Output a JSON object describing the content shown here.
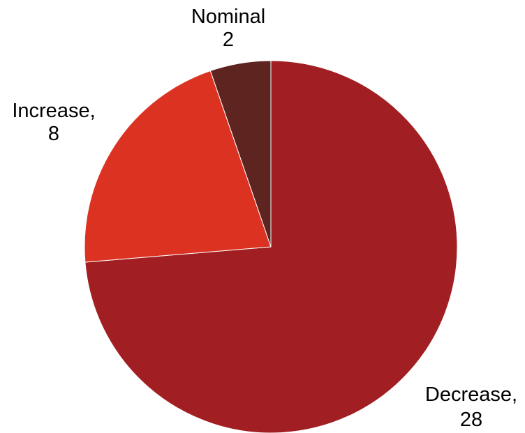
{
  "chart_data": {
    "type": "pie",
    "title": "",
    "slices": [
      {
        "label": "Decrease,",
        "value": 28,
        "color": "#A11E22"
      },
      {
        "label": "Increase,",
        "value": 8,
        "color": "#DC3222"
      },
      {
        "label": "Nominal",
        "value": 2,
        "color": "#5E2420"
      }
    ],
    "start_angle_deg": 0,
    "direction": "clockwise",
    "legend": "none",
    "data_labels": "outside"
  }
}
